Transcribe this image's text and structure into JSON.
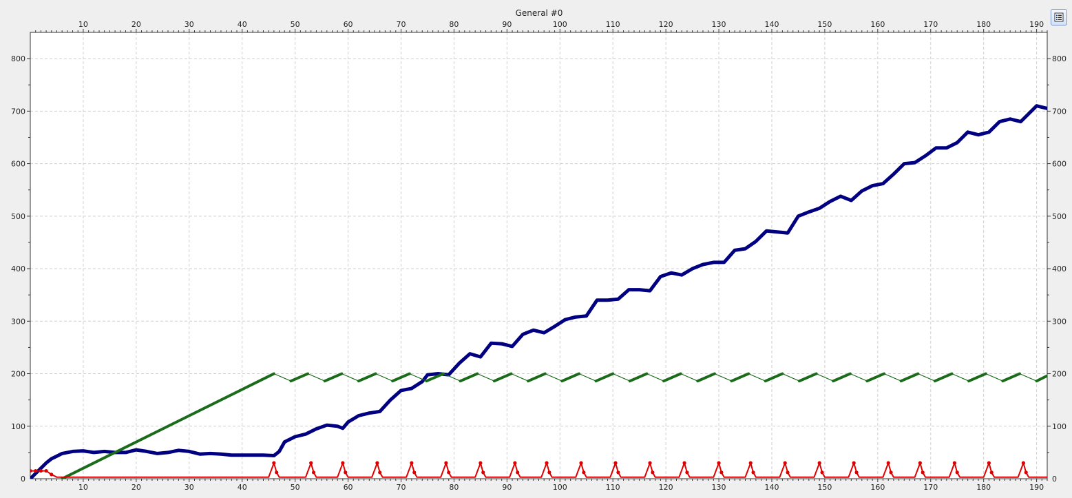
{
  "toolbar": {
    "legend_icon": "legend-list-icon"
  },
  "chart_data": {
    "type": "line",
    "title": "General  #0",
    "xlabel": "",
    "ylabel": "",
    "xlim": [
      0,
      192
    ],
    "ylim": [
      0,
      850
    ],
    "x_ticks": [
      10,
      20,
      30,
      40,
      50,
      60,
      70,
      80,
      90,
      100,
      110,
      120,
      130,
      140,
      150,
      160,
      170,
      180,
      190
    ],
    "y_ticks": [
      0,
      100,
      200,
      300,
      400,
      500,
      600,
      700,
      800
    ],
    "grid": true,
    "axes": "top x-axis, bottom x-axis, left y-axis, right y-axis",
    "series": [
      {
        "color": "#000080",
        "x": [
          0,
          1,
          2,
          3,
          4,
          5,
          6,
          8,
          10,
          12,
          14,
          16,
          18,
          20,
          22,
          24,
          26,
          28,
          30,
          32,
          34,
          36,
          38,
          40,
          42,
          44,
          46,
          47,
          48,
          50,
          52,
          54,
          56,
          58,
          59,
          60,
          62,
          64,
          66,
          68,
          70,
          72,
          74,
          75,
          77,
          79,
          81,
          83,
          85,
          87,
          89,
          91,
          93,
          95,
          97,
          99,
          101,
          103,
          105,
          107,
          109,
          111,
          113,
          115,
          117,
          119,
          121,
          123,
          125,
          127,
          129,
          131,
          133,
          135,
          137,
          139,
          141,
          143,
          145,
          147,
          149,
          151,
          153,
          155,
          157,
          159,
          161,
          163,
          165,
          167,
          169,
          171,
          173,
          175,
          177,
          179,
          181,
          183,
          185,
          187,
          189,
          190,
          192
        ],
        "values": [
          0,
          10,
          20,
          30,
          38,
          43,
          48,
          52,
          53,
          50,
          52,
          50,
          50,
          55,
          52,
          48,
          50,
          54,
          52,
          47,
          48,
          47,
          45,
          45,
          45,
          45,
          44,
          52,
          70,
          80,
          85,
          95,
          102,
          100,
          96,
          108,
          120,
          125,
          128,
          150,
          168,
          172,
          185,
          198,
          200,
          198,
          220,
          238,
          232,
          258,
          257,
          252,
          275,
          283,
          278,
          290,
          303,
          308,
          310,
          340,
          340,
          342,
          360,
          360,
          358,
          385,
          392,
          388,
          400,
          408,
          412,
          412,
          435,
          438,
          452,
          472,
          470,
          468,
          500,
          508,
          515,
          528,
          538,
          530,
          548,
          558,
          562,
          580,
          600,
          602,
          615,
          630,
          630,
          640,
          660,
          655,
          660,
          680,
          685,
          680,
          700,
          710,
          705
        ]
      },
      {
        "color": "#1a6b1a",
        "x": [
          6,
          46,
          49.2,
          52.4,
          55.6,
          58.8,
          62,
          65.2,
          68.4,
          71.6,
          74.8,
          78,
          81.2,
          84.4,
          87.6,
          90.8,
          94,
          97.2,
          100.4,
          103.6,
          106.8,
          110,
          113.2,
          116.4,
          119.6,
          122.8,
          126,
          129.2,
          132.4,
          135.6,
          138.8,
          142,
          145.2,
          148.4,
          151.6,
          154.8,
          158,
          161.2,
          164.4,
          167.6,
          170.8,
          174,
          177.2,
          180.4,
          183.6,
          186.8,
          190,
          192
        ],
        "values": [
          0,
          200,
          186,
          200,
          186,
          200,
          186,
          200,
          186,
          200,
          186,
          200,
          186,
          200,
          186,
          200,
          186,
          200,
          186,
          200,
          186,
          200,
          186,
          200,
          186,
          200,
          186,
          200,
          186,
          200,
          186,
          200,
          186,
          200,
          186,
          200,
          186,
          200,
          186,
          200,
          186,
          200,
          186,
          200,
          186,
          200,
          186,
          196
        ]
      },
      {
        "color": "#dd0000",
        "x": [
          0,
          1,
          2,
          3,
          4,
          5,
          6,
          7,
          8,
          45,
          46,
          46.5,
          47,
          52,
          53,
          53.5,
          54,
          58,
          59,
          59.5,
          60,
          64.5,
          65.5,
          66,
          66.5,
          71,
          72,
          72.5,
          73,
          77.5,
          78.5,
          79,
          79.5,
          84,
          85,
          85.5,
          86,
          90.5,
          91.5,
          92,
          92.5,
          96.5,
          97.5,
          98,
          98.5,
          103,
          104,
          104.5,
          105,
          109.5,
          110.5,
          111,
          111.5,
          116,
          117,
          117.5,
          118,
          122.5,
          123.5,
          124,
          124.5,
          129,
          130,
          130.5,
          131,
          135,
          136,
          136.5,
          137,
          141.5,
          142.5,
          143,
          143.5,
          148,
          149,
          149.5,
          150,
          154.5,
          155.5,
          156,
          156.5,
          161,
          162,
          162.5,
          163,
          167,
          168,
          168.5,
          169,
          173.5,
          174.5,
          175,
          175.5,
          180,
          181,
          181.5,
          182,
          186.5,
          187.5,
          188,
          188.5,
          192
        ],
        "values": [
          15,
          15,
          15,
          15,
          8,
          3,
          3,
          3,
          3,
          3,
          30,
          12,
          3,
          3,
          30,
          12,
          3,
          3,
          30,
          12,
          3,
          3,
          30,
          12,
          3,
          3,
          30,
          12,
          3,
          3,
          30,
          12,
          3,
          3,
          30,
          12,
          3,
          3,
          30,
          12,
          3,
          3,
          30,
          12,
          3,
          3,
          30,
          12,
          3,
          3,
          30,
          12,
          3,
          3,
          30,
          12,
          3,
          3,
          30,
          12,
          3,
          3,
          30,
          12,
          3,
          3,
          30,
          12,
          3,
          3,
          30,
          12,
          3,
          3,
          30,
          12,
          3,
          3,
          30,
          12,
          3,
          3,
          30,
          12,
          3,
          3,
          30,
          12,
          3,
          3,
          30,
          12,
          3,
          3,
          30,
          12,
          3,
          3,
          30,
          12,
          3,
          3
        ]
      }
    ]
  }
}
